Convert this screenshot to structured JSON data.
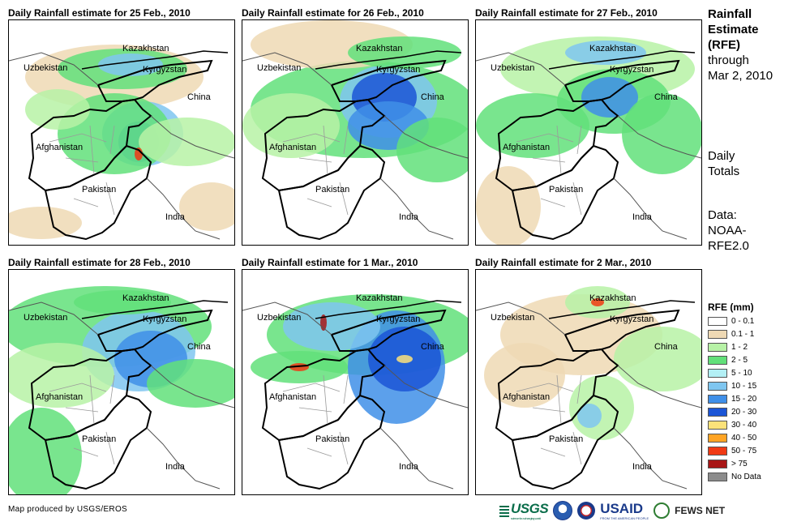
{
  "panels": [
    {
      "title": "Daily Rainfall estimate for 25 Feb., 2010"
    },
    {
      "title": "Daily Rainfall estimate for 26 Feb., 2010"
    },
    {
      "title": "Daily Rainfall estimate for 27 Feb., 2010"
    },
    {
      "title": "Daily Rainfall estimate for 28 Feb., 2010"
    },
    {
      "title": "Daily Rainfall estimate for 1 Mar., 2010"
    },
    {
      "title": "Daily Rainfall estimate for 2 Mar., 2010"
    }
  ],
  "map_labels": {
    "kazakhstan": "Kazakhstan",
    "kyrgyzstan": "Kyrgyzstan",
    "uzbekistan": "Uzbekistan",
    "china": "China",
    "afghanistan": "Afghanistan",
    "pakistan": "Pakistan",
    "india": "India"
  },
  "side": {
    "title_line1": "Rainfall",
    "title_line2": "Estimate",
    "title_line3": "(RFE)",
    "through": "through",
    "date": "Mar 2, 2010",
    "daily1": "Daily",
    "daily2": "Totals",
    "data1": "Data:",
    "data2": "NOAA-",
    "data3": "RFE2.0"
  },
  "legend": {
    "title": "RFE (mm)",
    "items": [
      {
        "label": "0 - 0.1",
        "color": "#ffffff"
      },
      {
        "label": "0.1 - 1",
        "color": "#efd9b4"
      },
      {
        "label": "1 - 2",
        "color": "#b7f2a6"
      },
      {
        "label": "2 - 5",
        "color": "#62e07a"
      },
      {
        "label": "5 - 10",
        "color": "#b3f0f5"
      },
      {
        "label": "10 - 15",
        "color": "#7fc6f0"
      },
      {
        "label": "15 - 20",
        "color": "#3f8fe8"
      },
      {
        "label": "20 - 30",
        "color": "#1b55d6"
      },
      {
        "label": "30 - 40",
        "color": "#fbe27a"
      },
      {
        "label": "40 - 50",
        "color": "#ffa424"
      },
      {
        "label": "50 - 75",
        "color": "#f03a14"
      },
      {
        "label": "> 75",
        "color": "#a81616"
      },
      {
        "label": "No Data",
        "color": "#8c8c8c"
      }
    ]
  },
  "credit": "Map produced by USGS/EROS",
  "logos": {
    "usgs": "USGS",
    "usgs_tag": "science for a changing world",
    "usaid": "USAID",
    "usaid_tag": "FROM THE AMERICAN PEOPLE",
    "fews": "FEWS NET"
  }
}
